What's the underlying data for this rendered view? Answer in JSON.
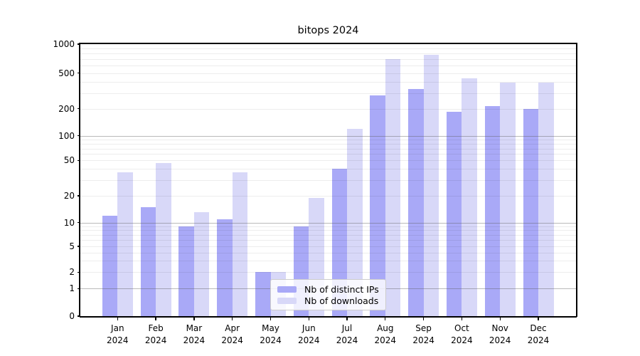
{
  "chart_data": {
    "type": "bar",
    "title": "bitops 2024",
    "categories": [
      "Jan 2024",
      "Feb 2024",
      "Mar 2024",
      "Apr 2024",
      "May 2024",
      "Jun 2024",
      "Jul 2024",
      "Aug 2024",
      "Sep 2024",
      "Oct 2024",
      "Nov 2024",
      "Dec 2024"
    ],
    "x_months": [
      "Jan",
      "Feb",
      "Mar",
      "Apr",
      "May",
      "Jun",
      "Jul",
      "Aug",
      "Sep",
      "Oct",
      "Nov",
      "Dec"
    ],
    "x_year": "2024",
    "series": [
      {
        "name": "Nb of distinct IPs",
        "color": "#a9a9f7",
        "values": [
          12,
          15,
          9,
          11,
          2,
          9,
          40,
          280,
          330,
          186,
          215,
          200
        ]
      },
      {
        "name": "Nb of downloads",
        "color": "#d8d8f8",
        "values": [
          37,
          47,
          13,
          37,
          2,
          19,
          120,
          700,
          780,
          440,
          390,
          390
        ]
      }
    ],
    "yscale": "symlog",
    "ylim": [
      0,
      1000
    ],
    "yticks": [
      0,
      1,
      2,
      5,
      10,
      20,
      50,
      100,
      200,
      500,
      1000
    ],
    "grid": "horizontal, major decades darker + log minors lighter, drawn over bars",
    "legend_position": "inside lower-center-left"
  },
  "legend": {
    "items": [
      {
        "label": "Nb of distinct IPs"
      },
      {
        "label": "Nb of downloads"
      }
    ]
  },
  "colors": {
    "bar_distinct_ips": "#a9a9f7",
    "bar_downloads": "#d8d8f8",
    "grid_minor": "rgba(0,0,0,0.07)",
    "grid_major": "rgba(90,90,90,0.42)",
    "spine": "#000000",
    "background": "#ffffff"
  }
}
